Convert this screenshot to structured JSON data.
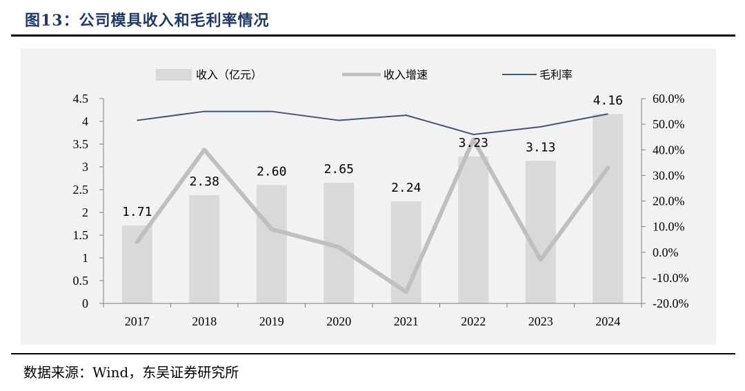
{
  "figure": {
    "title": "图13：公司模具收入和毛利率情况",
    "source": "数据来源：Wind，东吴证券研究所"
  },
  "colors": {
    "title": "#1f3864",
    "bar": "#d9d9d9",
    "growth_line": "#bfbfbf",
    "margin_line": "#44546a",
    "plot_bg": "#f2f2f2"
  },
  "chart_data": {
    "type": "bar",
    "categories": [
      "2017",
      "2018",
      "2019",
      "2020",
      "2021",
      "2022",
      "2023",
      "2024"
    ],
    "series": [
      {
        "name": "收入（亿元）",
        "type": "bar",
        "axis": "left",
        "values": [
          1.71,
          2.38,
          2.6,
          2.65,
          2.24,
          3.23,
          3.13,
          4.16
        ],
        "labels": [
          "1.71",
          "2.38",
          "2.60",
          "2.65",
          "2.24",
          "3.23",
          "3.13",
          "4.16"
        ]
      },
      {
        "name": "收入增速",
        "type": "line",
        "axis": "right",
        "values": [
          0.04,
          0.4,
          0.09,
          0.02,
          -0.155,
          0.44,
          -0.03,
          0.33
        ]
      },
      {
        "name": "毛利率",
        "type": "line",
        "axis": "right",
        "values": [
          0.515,
          0.55,
          0.55,
          0.515,
          0.535,
          0.46,
          0.49,
          0.54
        ]
      }
    ],
    "y_left": {
      "min": 0,
      "max": 4.5,
      "ticks": [
        "0",
        "0.5",
        "1",
        "1.5",
        "2",
        "2.5",
        "3",
        "3.5",
        "4",
        "4.5"
      ]
    },
    "y_right": {
      "min": -0.2,
      "max": 0.6,
      "ticks": [
        "-20.0%",
        "-10.0%",
        "0.0%",
        "10.0%",
        "20.0%",
        "30.0%",
        "40.0%",
        "50.0%",
        "60.0%"
      ]
    },
    "legend_position": "top",
    "grid": false
  }
}
